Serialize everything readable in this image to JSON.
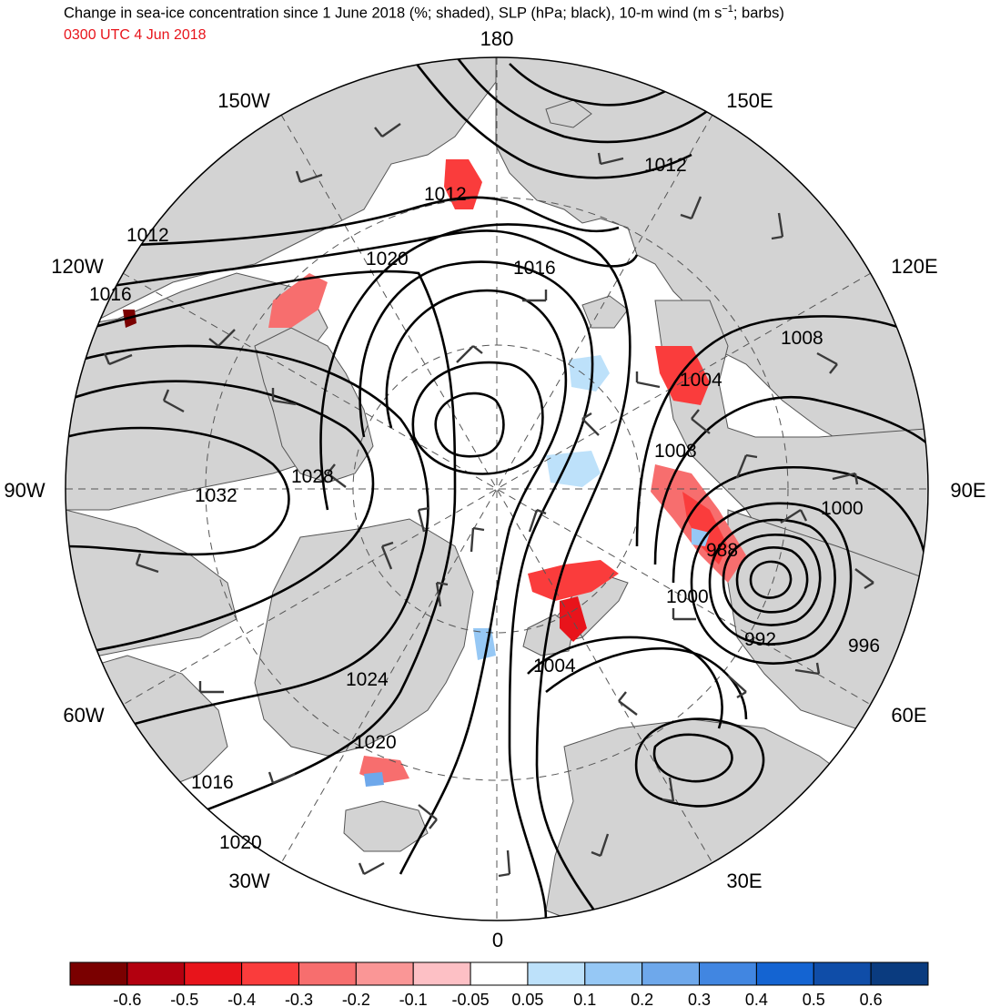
{
  "header": {
    "title_main": "Change in sea-ice concentration since 1 June 2018 (%; shaded), SLP (hPa; black), 10-m wind (m s",
    "title_sup": "−1",
    "title_tail": "; barbs)",
    "valid_time": "0300 UTC 4 Jun 2018"
  },
  "map": {
    "projection": "north-polar-stereographic",
    "land_color": "#d3d3d3",
    "ocean_color": "#ffffff",
    "lon_labels": {
      "n180": "180",
      "w150": "150W",
      "e150": "150E",
      "w120": "120W",
      "e120": "120E",
      "w90": "90W",
      "e90": "90E",
      "w60": "60W",
      "e60": "60E",
      "w30": "30W",
      "e30": "30E",
      "zero": "0"
    },
    "slp_labels": {
      "l1012a": "1012",
      "l1012b": "1012",
      "l1012c": "1012",
      "l1016a": "1016",
      "l1016b": "1016",
      "l1016c": "1016",
      "l1020a": "1020",
      "l1020b": "1020",
      "l1020c": "1020",
      "l1024": "1024",
      "l1028": "1028",
      "l1032": "1032",
      "l1008a": "1008",
      "l1008b": "1008",
      "l1004a": "1004",
      "l1004b": "1004",
      "l1000a": "1000",
      "l1000b": "1000",
      "l996": "996",
      "l992": "992",
      "l988": "988"
    }
  },
  "colorbar": {
    "colors": [
      "#7a0000",
      "#b3000f",
      "#e8141b",
      "#fa3c3c",
      "#f76e6e",
      "#fa9696",
      "#fdc0c5",
      "#ffffff",
      "#bde1fa",
      "#96c8f5",
      "#6ea8eb",
      "#4186e1",
      "#1464d2",
      "#0f4da8",
      "#0a3b7f"
    ],
    "labels": [
      "-0.6",
      "-0.5",
      "-0.4",
      "-0.3",
      "-0.2",
      "-0.1",
      "-0.05",
      "0.05",
      "0.1",
      "0.2",
      "0.3",
      "0.4",
      "0.5",
      "0.6"
    ]
  }
}
